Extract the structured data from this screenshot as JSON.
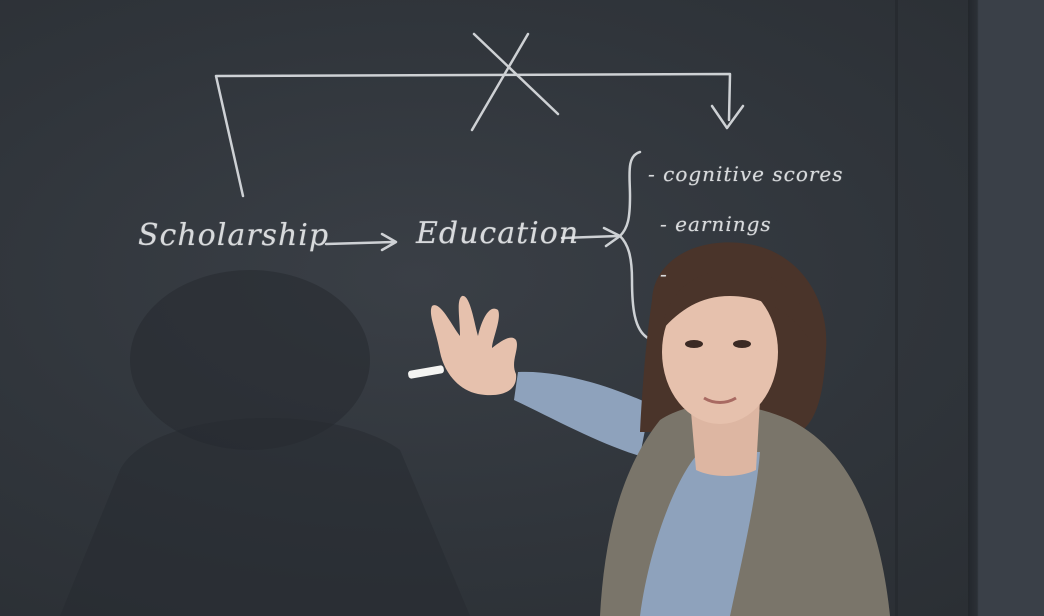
{
  "scene": {
    "description_label": "lecture-chalkboard",
    "colors": {
      "board": "#30353b",
      "chalk": "#e6e8ea",
      "jacket": "#7a756a",
      "sweater": "#8ea2bc",
      "hair": "#4a342a",
      "skin": "#e6c1ad"
    }
  },
  "chalkboard": {
    "word_scholarship": "Scholarship",
    "word_education": "Education",
    "item_1": "- cognitive scores",
    "item_2": "- earnings",
    "item_3": "-"
  }
}
